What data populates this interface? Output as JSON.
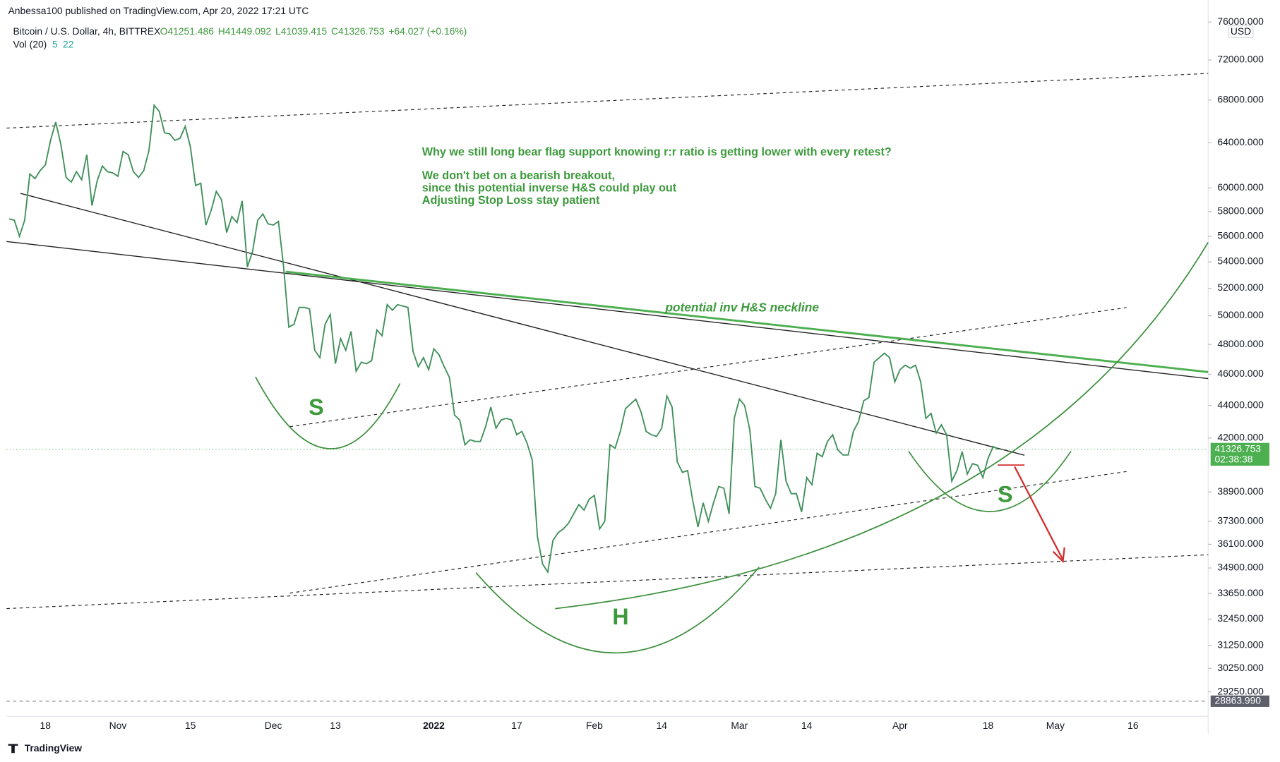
{
  "header": "Anbessa100 published on TradingView.com, Apr 20, 2022 17:21 UTC",
  "watermark": "TradingView",
  "chart_data": {
    "type": "line",
    "title": "Bitcoin / U.S. Dollar, 4h, BITTREX",
    "ohlc": [
      "O41251.486",
      "H41449.092",
      "L41039.415",
      "C41326.753",
      "+64.027 (+0.16%)"
    ],
    "volume_legend": [
      "Vol (20)",
      "5",
      "22"
    ],
    "currency": "USD",
    "countdown": "02:38:38",
    "last_price": 41326.753,
    "marker_price": {
      "value": 28863.99,
      "label": "28863.990"
    },
    "color": "#3f8f5a",
    "log_scale": true,
    "grid": false,
    "ylim": [
      28250,
      76800
    ],
    "yticks": [
      {
        "value": 76000,
        "label": "76000.000"
      },
      {
        "value": 72000,
        "label": "72000.000"
      },
      {
        "value": 68000,
        "label": "68000.000"
      },
      {
        "value": 64000,
        "label": "64000.000"
      },
      {
        "value": 60000,
        "label": "60000.000"
      },
      {
        "value": 58000,
        "label": "58000.000"
      },
      {
        "value": 56000,
        "label": "56000.000"
      },
      {
        "value": 54000,
        "label": "54000.000"
      },
      {
        "value": 52000,
        "label": "52000.000"
      },
      {
        "value": 50000,
        "label": "50000.000"
      },
      {
        "value": 48000,
        "label": "48000.000"
      },
      {
        "value": 46000,
        "label": "46000.000"
      },
      {
        "value": 44000,
        "label": "44000.000"
      },
      {
        "value": 42000,
        "label": "42000.000"
      },
      {
        "value": 38900,
        "label": "38900.000"
      },
      {
        "value": 37300,
        "label": "37300.000"
      },
      {
        "value": 36100,
        "label": "36100.000"
      },
      {
        "value": 34900,
        "label": "34900.000"
      },
      {
        "value": 33650,
        "label": "33650.000"
      },
      {
        "value": 32450,
        "label": "32450.000"
      },
      {
        "value": 31250,
        "label": "31250.000"
      },
      {
        "value": 30250,
        "label": "30250.000"
      },
      {
        "value": 29250,
        "label": "29250.000"
      }
    ],
    "categories": [
      null,
      null,
      null,
      null,
      null,
      null,
      null,
      "18",
      null,
      null,
      null,
      null,
      null,
      null,
      null,
      null,
      null,
      null,
      null,
      null,
      null,
      "Nov",
      null,
      null,
      null,
      null,
      null,
      null,
      null,
      null,
      null,
      null,
      null,
      null,
      null,
      "15",
      null,
      null,
      null,
      null,
      null,
      null,
      null,
      null,
      null,
      null,
      null,
      null,
      null,
      null,
      null,
      "Dec",
      null,
      null,
      null,
      null,
      null,
      null,
      null,
      null,
      null,
      null,
      null,
      "13",
      null,
      null,
      null,
      null,
      null,
      null,
      null,
      null,
      null,
      null,
      null,
      null,
      null,
      null,
      null,
      null,
      null,
      null,
      "2022",
      null,
      null,
      null,
      null,
      null,
      null,
      null,
      null,
      null,
      null,
      null,
      null,
      null,
      null,
      null,
      "17",
      null,
      null,
      null,
      null,
      null,
      null,
      null,
      null,
      null,
      null,
      null,
      null,
      null,
      null,
      "Feb",
      null,
      null,
      null,
      null,
      null,
      null,
      null,
      null,
      null,
      null,
      null,
      null,
      "14",
      null,
      null,
      null,
      null,
      null,
      null,
      null,
      null,
      null,
      null,
      null,
      null,
      null,
      null,
      "Mar",
      null,
      null,
      null,
      null,
      null,
      null,
      null,
      null,
      null,
      null,
      null,
      null,
      "14",
      null,
      null,
      null,
      null,
      null,
      null,
      null,
      null,
      null,
      null,
      null,
      null,
      null,
      null,
      null,
      null,
      null,
      "Apr",
      null,
      null,
      null,
      null,
      null,
      null,
      null,
      null,
      null,
      null,
      null,
      null,
      null,
      null,
      null,
      null,
      "18",
      null,
      null,
      null,
      null,
      null,
      null,
      null,
      null,
      null,
      null,
      null,
      null,
      "May",
      null,
      null,
      null,
      null,
      null,
      null,
      null,
      null,
      null,
      null,
      null,
      null,
      null,
      null,
      "16",
      null,
      null,
      null,
      null,
      null,
      null,
      null,
      null,
      null,
      null,
      null,
      null,
      null,
      null
    ],
    "values": [
      57400,
      57300,
      56000,
      57300,
      61200,
      60800,
      61500,
      62000,
      64200,
      65900,
      63800,
      60900,
      60500,
      61400,
      60700,
      62900,
      58500,
      60600,
      61900,
      61400,
      61300,
      61000,
      63200,
      62900,
      61400,
      60900,
      61500,
      63300,
      67500,
      66900,
      64900,
      64800,
      64200,
      64400,
      65500,
      63600,
      60200,
      60400,
      56900,
      58100,
      59700,
      59000,
      56300,
      57600,
      57100,
      58900,
      53600,
      54800,
      57300,
      57800,
      57000,
      56900,
      57200,
      53600,
      49200,
      49400,
      50600,
      50600,
      50500,
      47600,
      47100,
      49400,
      50100,
      46700,
      48400,
      47600,
      48900,
      46200,
      46800,
      46700,
      46900,
      49000,
      48600,
      50800,
      50400,
      50800,
      50700,
      50600,
      47500,
      46500,
      47100,
      46300,
      47700,
      47300,
      46500,
      45800,
      43400,
      43100,
      41600,
      41900,
      41800,
      41800,
      42700,
      43900,
      42600,
      43100,
      43200,
      43100,
      42200,
      42400,
      41700,
      40700,
      36500,
      35100,
      34700,
      36300,
      36700,
      36900,
      37200,
      37700,
      38200,
      37900,
      38500,
      38700,
      36900,
      37300,
      41600,
      41400,
      42400,
      43800,
      44100,
      44400,
      43600,
      42400,
      42200,
      42100,
      42600,
      44600,
      43900,
      40600,
      40000,
      40100,
      38400,
      37000,
      38300,
      37300,
      38300,
      39200,
      39100,
      37700,
      43200,
      44400,
      44000,
      42500,
      39200,
      39100,
      38500,
      38000,
      38800,
      41900,
      39500,
      38800,
      38800,
      37800,
      39700,
      39300,
      41100,
      40900,
      41800,
      42200,
      41300,
      41000,
      41000,
      42400,
      43000,
      44300,
      44500,
      46800,
      47100,
      47400,
      47100,
      45500,
      46300,
      46600,
      46400,
      46600,
      45500,
      43200,
      43500,
      42300,
      42800,
      42200,
      39500,
      40100,
      41200,
      39900,
      40500,
      40400,
      39700,
      40800,
      41500,
      41326.753,
      null,
      null,
      null,
      null,
      null,
      null,
      null,
      null,
      null,
      null,
      null,
      null,
      null,
      null,
      null,
      null,
      null,
      null,
      null,
      null,
      null,
      null,
      null,
      null,
      null,
      null,
      null,
      null,
      null,
      null,
      null,
      null,
      null,
      null,
      null,
      null,
      null,
      null,
      null,
      null
    ],
    "annotations": {
      "question": "Why we still long bear flag support knowing r:r ratio is getting lower with every retest?",
      "note_lines": [
        "We don't bet on a bearish breakout,",
        "since this potential inverse H&S could play out",
        "Adjusting Stop Loss stay patient"
      ],
      "neckline": "potential inv H&S neckline",
      "left_shoulder": "S",
      "head": "H",
      "right_shoulder": "S"
    }
  }
}
